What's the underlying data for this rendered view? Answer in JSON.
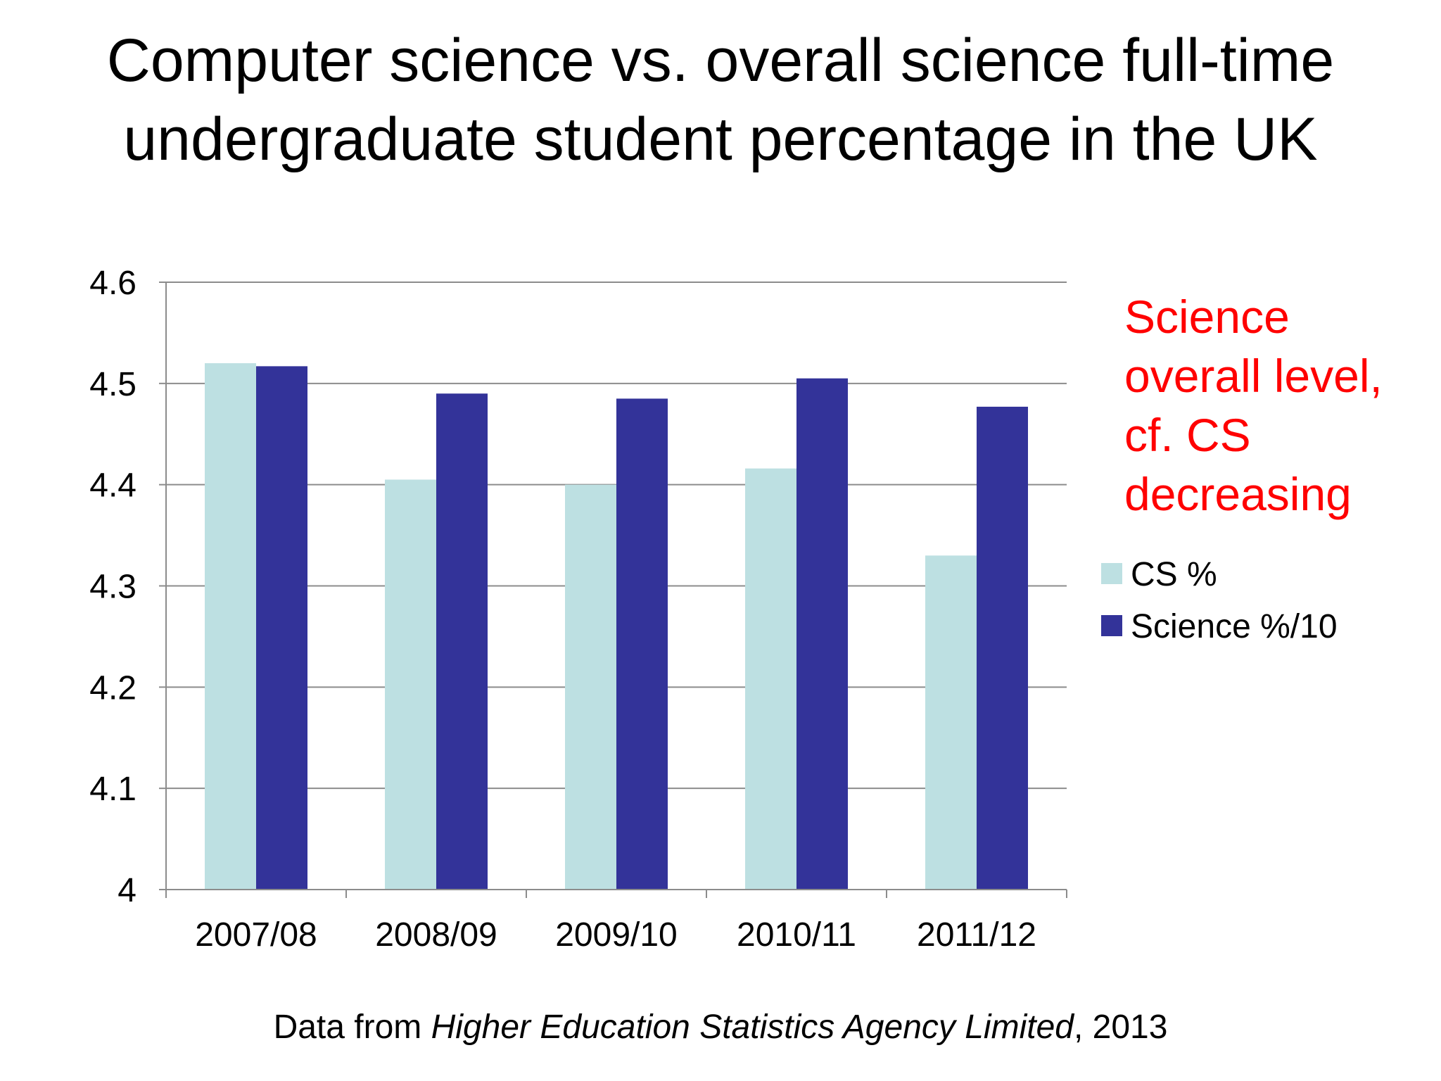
{
  "title": {
    "line1": "Computer science vs. overall science full-time",
    "line2": "undergraduate student percentage in the UK"
  },
  "annotation": {
    "lines": [
      "Science",
      "overall level,",
      "cf. CS",
      "decreasing"
    ],
    "color": "#ff0000"
  },
  "source": {
    "prefix": "Data from ",
    "italic": "Higher Education Statistics Agency Limited",
    "suffix": ", 2013"
  },
  "chart_data": {
    "type": "bar",
    "categories": [
      "2007/08",
      "2008/09",
      "2009/10",
      "2010/11",
      "2011/12"
    ],
    "series": [
      {
        "name": "CS %",
        "color": "#bde0e2",
        "values": [
          4.52,
          4.405,
          4.4,
          4.416,
          4.33
        ]
      },
      {
        "name": "Science %/10",
        "color": "#333399",
        "values": [
          4.517,
          4.49,
          4.485,
          4.505,
          4.477
        ]
      }
    ],
    "ylim": [
      4,
      4.6
    ],
    "yticks": [
      "4",
      "4.1",
      "4.2",
      "4.3",
      "4.4",
      "4.5",
      "4.6"
    ],
    "grid": true,
    "legend_position": "right",
    "xlabel": "",
    "ylabel": ""
  }
}
